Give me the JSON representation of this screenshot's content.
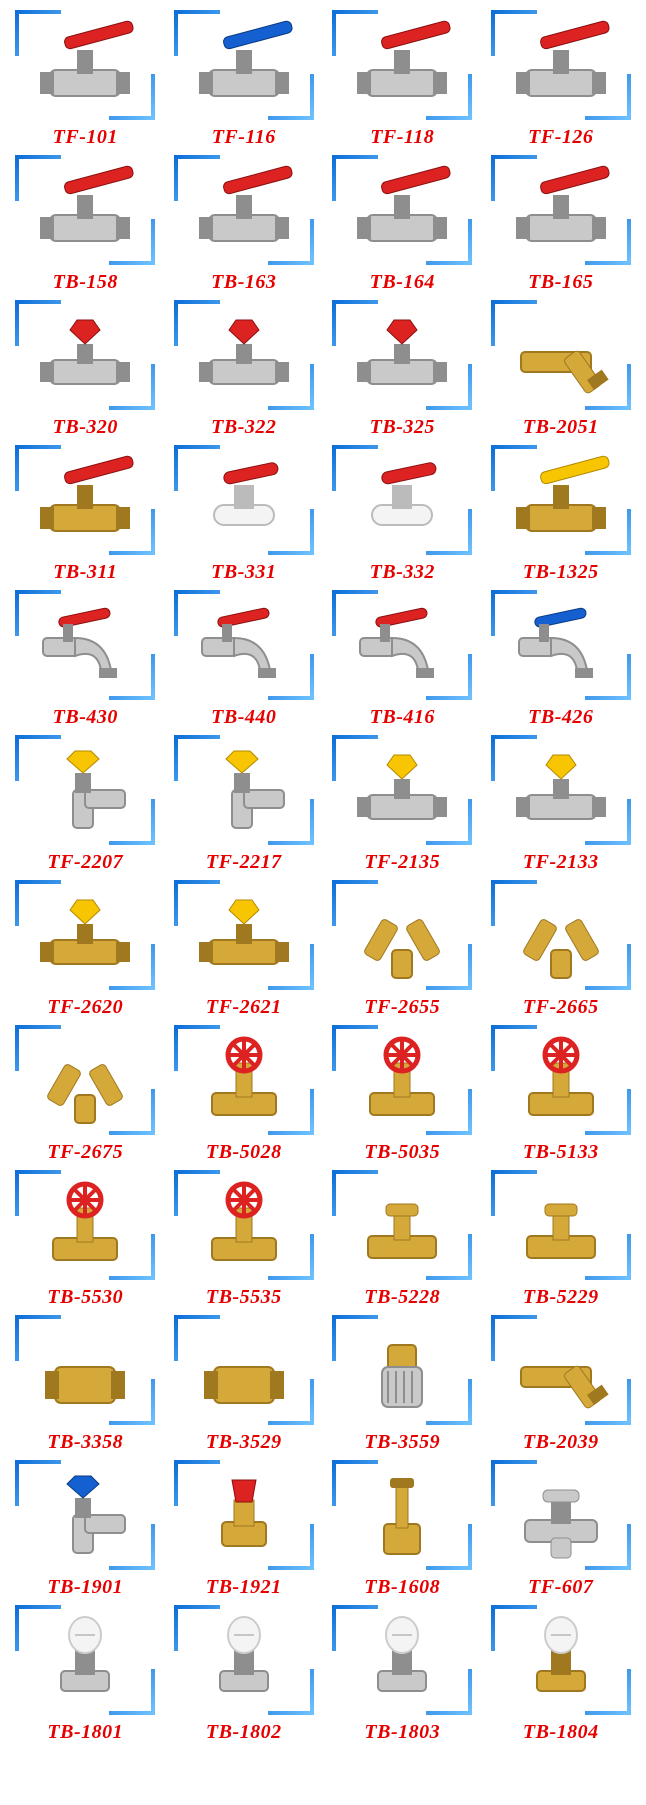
{
  "label_color": "#e60000",
  "frame_gradient": [
    "#0d6fd8",
    "#6ec1ff"
  ],
  "background_color": "#ffffff",
  "columns": 4,
  "label_fontsize": 20,
  "label_font": "Times New Roman, serif",
  "label_weight": "bold",
  "label_style": "italic",
  "colors": {
    "brass": "#d4a93a",
    "brass_dark": "#a07820",
    "chrome": "#c9c9c9",
    "chrome_dark": "#8e8e8e",
    "red": "#d22",
    "blue": "#1560d0",
    "yellow": "#f7c501",
    "white": "#f4f4f4"
  },
  "products": [
    {
      "code": "TF-101",
      "icon": "lever-valve",
      "body": "chrome",
      "handle": "red"
    },
    {
      "code": "TF-116",
      "icon": "lever-valve",
      "body": "chrome",
      "handle": "blue"
    },
    {
      "code": "TF-118",
      "icon": "lever-valve",
      "body": "chrome",
      "handle": "red"
    },
    {
      "code": "TF-126",
      "icon": "lever-valve",
      "body": "chrome",
      "handle": "red"
    },
    {
      "code": "TB-158",
      "icon": "lever-valve",
      "body": "chrome",
      "handle": "red"
    },
    {
      "code": "TB-163",
      "icon": "lever-valve",
      "body": "chrome",
      "handle": "red"
    },
    {
      "code": "TB-164",
      "icon": "lever-valve",
      "body": "chrome",
      "handle": "red"
    },
    {
      "code": "TB-165",
      "icon": "lever-valve",
      "body": "chrome",
      "handle": "red"
    },
    {
      "code": "TB-320",
      "icon": "butterfly-valve",
      "body": "chrome",
      "handle": "red"
    },
    {
      "code": "TB-322",
      "icon": "butterfly-valve",
      "body": "chrome",
      "handle": "red"
    },
    {
      "code": "TB-325",
      "icon": "butterfly-valve",
      "body": "chrome",
      "handle": "red"
    },
    {
      "code": "TB-2051",
      "icon": "y-strainer",
      "body": "brass",
      "handle": "red"
    },
    {
      "code": "TB-311",
      "icon": "lever-valve",
      "body": "brass",
      "handle": "red"
    },
    {
      "code": "TB-331",
      "icon": "mini-valve",
      "body": "white",
      "handle": "red"
    },
    {
      "code": "TB-332",
      "icon": "mini-valve",
      "body": "white",
      "handle": "red"
    },
    {
      "code": "TB-1325",
      "icon": "lever-valve",
      "body": "brass",
      "handle": "yellow"
    },
    {
      "code": "TB-430",
      "icon": "bibcock",
      "body": "chrome",
      "handle": "red"
    },
    {
      "code": "TB-440",
      "icon": "bibcock",
      "body": "chrome",
      "handle": "red"
    },
    {
      "code": "TB-416",
      "icon": "bibcock",
      "body": "chrome",
      "handle": "red"
    },
    {
      "code": "TB-426",
      "icon": "bibcock",
      "body": "chrome",
      "handle": "blue"
    },
    {
      "code": "TF-2207",
      "icon": "angle-valve",
      "body": "chrome",
      "handle": "yellow"
    },
    {
      "code": "TF-2217",
      "icon": "angle-valve",
      "body": "chrome",
      "handle": "yellow"
    },
    {
      "code": "TF-2135",
      "icon": "butterfly-valve",
      "body": "chrome",
      "handle": "yellow"
    },
    {
      "code": "TF-2133",
      "icon": "butterfly-valve",
      "body": "chrome",
      "handle": "yellow"
    },
    {
      "code": "TF-2620",
      "icon": "butterfly-valve",
      "body": "brass",
      "handle": "yellow"
    },
    {
      "code": "TF-2621",
      "icon": "butterfly-valve",
      "body": "brass",
      "handle": "yellow"
    },
    {
      "code": "TF-2655",
      "icon": "y-fitting",
      "body": "brass",
      "handle": "brass"
    },
    {
      "code": "TF-2665",
      "icon": "y-fitting",
      "body": "brass",
      "handle": "brass"
    },
    {
      "code": "TF-2675",
      "icon": "y-fitting",
      "body": "brass",
      "handle": "brass"
    },
    {
      "code": "TB-5028",
      "icon": "gate-valve",
      "body": "brass",
      "handle": "red"
    },
    {
      "code": "TB-5035",
      "icon": "gate-valve",
      "body": "brass",
      "handle": "red"
    },
    {
      "code": "TB-5133",
      "icon": "gate-valve",
      "body": "brass",
      "handle": "red"
    },
    {
      "code": "TB-5530",
      "icon": "gate-valve",
      "body": "brass",
      "handle": "red"
    },
    {
      "code": "TB-5535",
      "icon": "gate-valve",
      "body": "brass",
      "handle": "red"
    },
    {
      "code": "TB-5228",
      "icon": "stop-valve",
      "body": "brass",
      "handle": "brass"
    },
    {
      "code": "TB-5229",
      "icon": "stop-valve",
      "body": "brass",
      "handle": "brass"
    },
    {
      "code": "TB-3358",
      "icon": "check-valve",
      "body": "brass",
      "handle": "brass"
    },
    {
      "code": "TB-3529",
      "icon": "check-valve",
      "body": "brass",
      "handle": "brass"
    },
    {
      "code": "TB-3559",
      "icon": "foot-valve",
      "body": "brass",
      "handle": "chrome"
    },
    {
      "code": "TB-2039",
      "icon": "y-strainer",
      "body": "brass",
      "handle": "brass"
    },
    {
      "code": "TB-1901",
      "icon": "angle-valve",
      "body": "chrome",
      "handle": "blue"
    },
    {
      "code": "TB-1921",
      "icon": "safety-valve",
      "body": "brass",
      "handle": "red"
    },
    {
      "code": "TB-1608",
      "icon": "relief-valve",
      "body": "brass",
      "handle": "brass"
    },
    {
      "code": "TF-607",
      "icon": "mixing-valve",
      "body": "chrome",
      "handle": "chrome"
    },
    {
      "code": "TB-1801",
      "icon": "radiator-valve",
      "body": "chrome",
      "handle": "white"
    },
    {
      "code": "TB-1802",
      "icon": "radiator-valve",
      "body": "chrome",
      "handle": "white"
    },
    {
      "code": "TB-1803",
      "icon": "radiator-valve",
      "body": "chrome",
      "handle": "white"
    },
    {
      "code": "TB-1804",
      "icon": "radiator-valve",
      "body": "brass",
      "handle": "white"
    }
  ]
}
